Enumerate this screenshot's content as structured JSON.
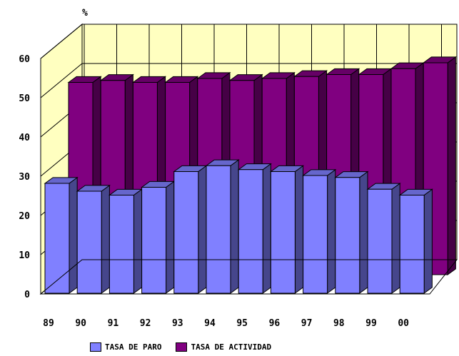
{
  "chart_data": {
    "type": "bar",
    "style": "3d-clustered-columns",
    "unit_label": "%",
    "categories": [
      "89",
      "90",
      "91",
      "92",
      "93",
      "94",
      "95",
      "96",
      "97",
      "98",
      "99",
      "00"
    ],
    "series": [
      {
        "name": "TASA DE PARO",
        "color": "#8080ff",
        "values": [
          28,
          26,
          25,
          27,
          31,
          32.5,
          31.5,
          31,
          30,
          29.5,
          26.5,
          25
        ]
      },
      {
        "name": "TASA DE ACTIVIDAD",
        "color": "#800080",
        "values": [
          49,
          49.5,
          49,
          49,
          50,
          49.5,
          50,
          50.5,
          51,
          51,
          52.5,
          54
        ]
      }
    ],
    "y_ticks": [
      "0",
      "10",
      "20",
      "30",
      "40",
      "50",
      "60"
    ],
    "ylim": [
      0,
      60
    ],
    "grid": true,
    "wall_color": "#ffffc0",
    "legend_position": "bottom"
  }
}
